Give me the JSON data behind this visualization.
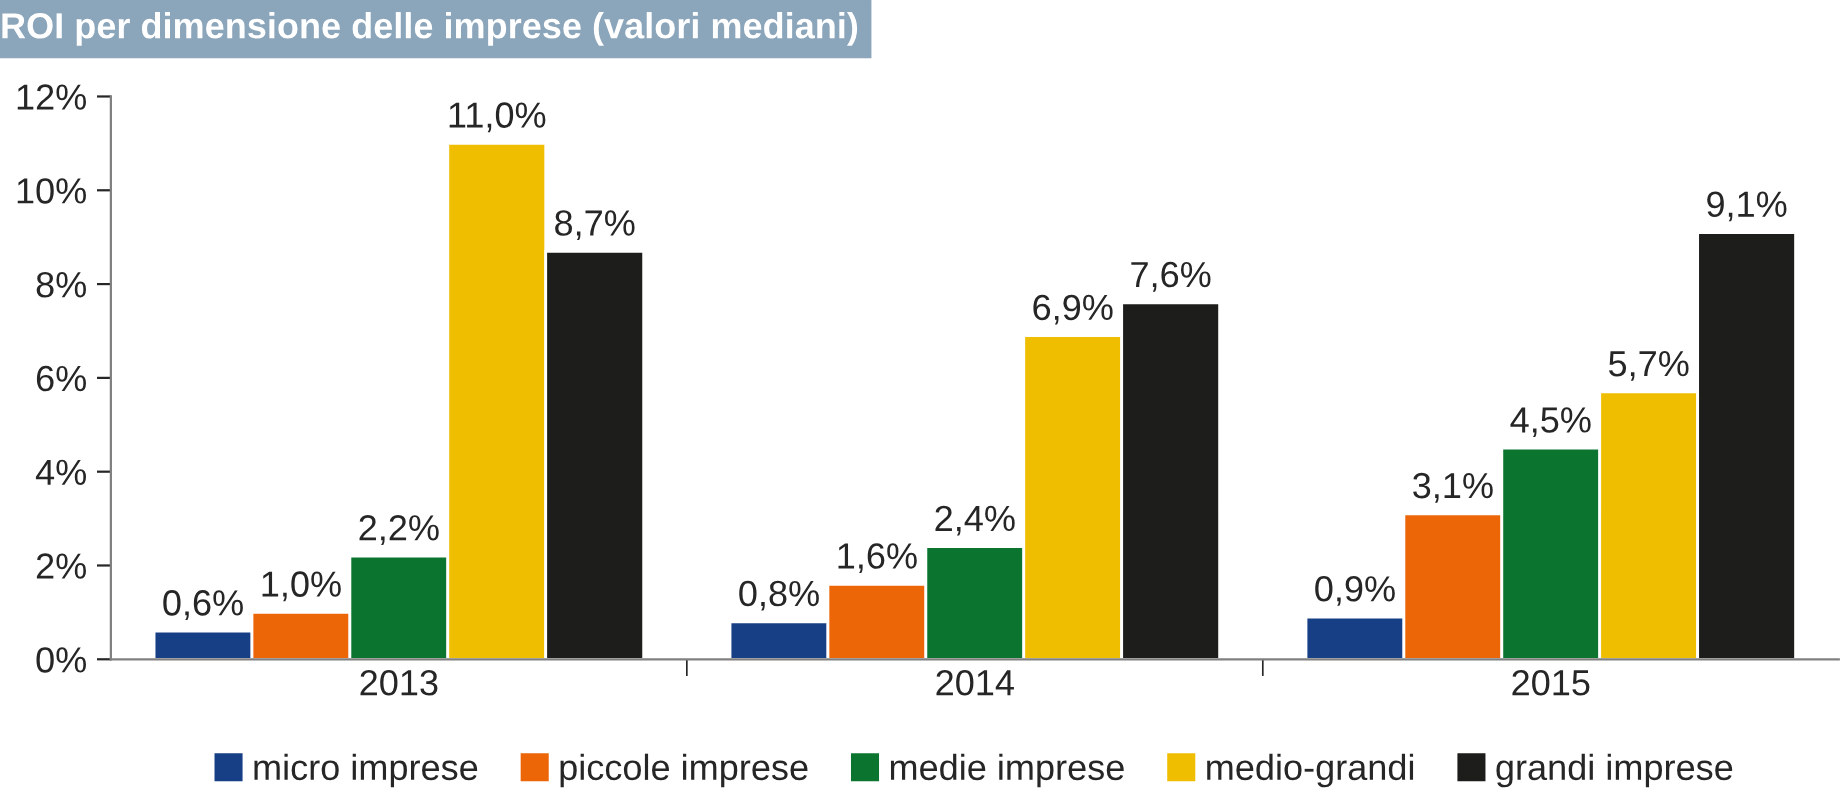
{
  "chart_data": {
    "type": "bar",
    "title": "ROI per dimensione delle imprese (valori mediani)",
    "categories": [
      "2013",
      "2014",
      "2015"
    ],
    "series": [
      {
        "name": "micro imprese",
        "color": "#173f86",
        "values": [
          0.6,
          0.8,
          0.9
        ],
        "value_labels": [
          "0,6%",
          "0,8%",
          "0,9%"
        ]
      },
      {
        "name": "piccole imprese",
        "color": "#ec6608",
        "values": [
          1.0,
          1.6,
          3.1
        ],
        "value_labels": [
          "1,0%",
          "1,6%",
          "3,1%"
        ]
      },
      {
        "name": "medie imprese",
        "color": "#0b7530",
        "values": [
          2.2,
          2.4,
          4.5
        ],
        "value_labels": [
          "2,2%",
          "2,4%",
          "4,5%"
        ]
      },
      {
        "name": "medio-grandi",
        "color": "#efbe00",
        "values": [
          11.0,
          6.9,
          5.7
        ],
        "value_labels": [
          "11,0%",
          "6,9%",
          "5,7%"
        ]
      },
      {
        "name": "grandi imprese",
        "color": "#1d1d1b",
        "values": [
          8.7,
          7.6,
          9.1
        ],
        "value_labels": [
          "8,7%",
          "7,6%",
          "9,1%"
        ]
      }
    ],
    "ylim": [
      0,
      12
    ],
    "yticks": [
      {
        "value": 0,
        "label": "0%"
      },
      {
        "value": 2,
        "label": "2%"
      },
      {
        "value": 4,
        "label": "4%"
      },
      {
        "value": 6,
        "label": "6%"
      },
      {
        "value": 8,
        "label": "8%"
      },
      {
        "value": 10,
        "label": "10%"
      },
      {
        "value": 12,
        "label": "12%"
      }
    ],
    "grid": false,
    "legend": "bottom"
  }
}
